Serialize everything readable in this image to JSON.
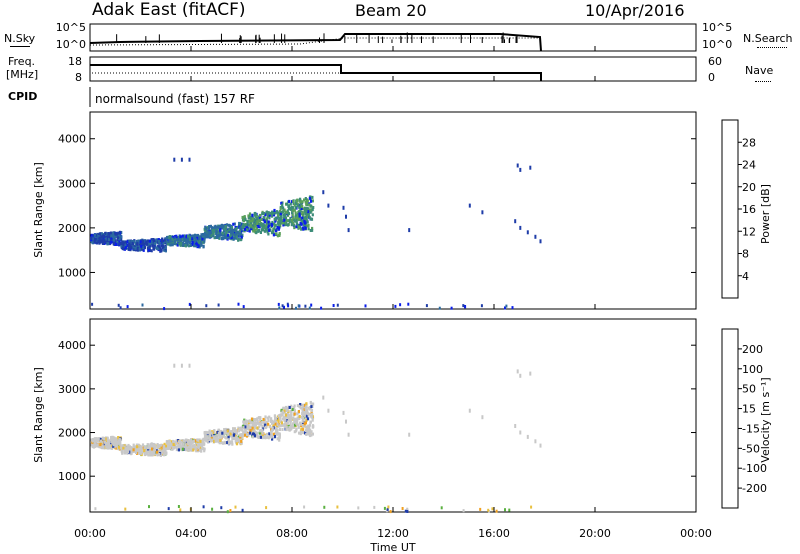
{
  "header": {
    "station": "Adak East (fitACF)",
    "beam": "Beam 20",
    "date": "10/Apr/2016"
  },
  "panels": {
    "nsky_label": "N.Sky",
    "nsearch_label": "N.Search",
    "freq_label": "Freq.",
    "freq_unit": "[MHz]",
    "nave_label": "Nave",
    "cpid_label": "CPID",
    "cpid_text": "normalsound (fast) 157 RF",
    "noise_left_ticks": [
      "10^5",
      "10^0"
    ],
    "noise_right_ticks": [
      "10^5",
      "10^0"
    ],
    "freq_left_ticks": [
      "18",
      "8"
    ],
    "nave_right_ticks": [
      "60",
      "0"
    ]
  },
  "chart_data": [
    {
      "type": "heatmap",
      "title": "",
      "ylabel": "Slant Range [km]",
      "xlabel": "",
      "ylim": [
        180,
        4600
      ],
      "yticks": [
        "1000",
        "2000",
        "3000",
        "4000"
      ],
      "colorbar": {
        "label": "Power [dB]",
        "ticks": [
          "4",
          "8",
          "12",
          "16",
          "20",
          "24",
          "28"
        ],
        "colors": [
          "#0a1ee8",
          "#1e3ca8",
          "#2c6aa0",
          "#3c8c78",
          "#5aa05a",
          "#e8e030",
          "#f0a020",
          "#e86010",
          "#e82020"
        ]
      },
      "echo_regions": [
        {
          "t0": 0.0,
          "t1": 1.2,
          "r0": 1600,
          "r1": 1900,
          "level": 1
        },
        {
          "t0": 1.2,
          "t1": 3.0,
          "r0": 1450,
          "r1": 1750,
          "level": 1
        },
        {
          "t0": 3.0,
          "t1": 4.5,
          "r0": 1550,
          "r1": 1850,
          "level": 2
        },
        {
          "t0": 4.5,
          "t1": 6.0,
          "r0": 1700,
          "r1": 2100,
          "level": 2
        },
        {
          "t0": 6.0,
          "t1": 7.5,
          "r0": 1800,
          "r1": 2400,
          "level": 3
        },
        {
          "t0": 7.5,
          "t1": 8.8,
          "r0": 1900,
          "r1": 2700,
          "level": 3
        }
      ]
    },
    {
      "type": "heatmap",
      "title": "",
      "ylabel": "Slant Range [km]",
      "xlabel": "Time UT",
      "ylim": [
        180,
        4600
      ],
      "yticks": [
        "1000",
        "2000",
        "3000",
        "4000"
      ],
      "xticks": [
        "00:00",
        "04:00",
        "08:00",
        "12:00",
        "16:00",
        "20:00",
        "00:00"
      ],
      "colorbar": {
        "label": "Velocity [m s⁻¹]",
        "ticks": [
          "200",
          "100",
          "50",
          "15",
          "-15",
          "-50",
          "-100",
          "-200"
        ],
        "colors": [
          "#1e3ca8",
          "#2c6aa0",
          "#3c8c78",
          "#5ab040",
          "#c8c8c8",
          "#e8c040",
          "#f0a020",
          "#e86010",
          "#e82020"
        ]
      }
    }
  ]
}
